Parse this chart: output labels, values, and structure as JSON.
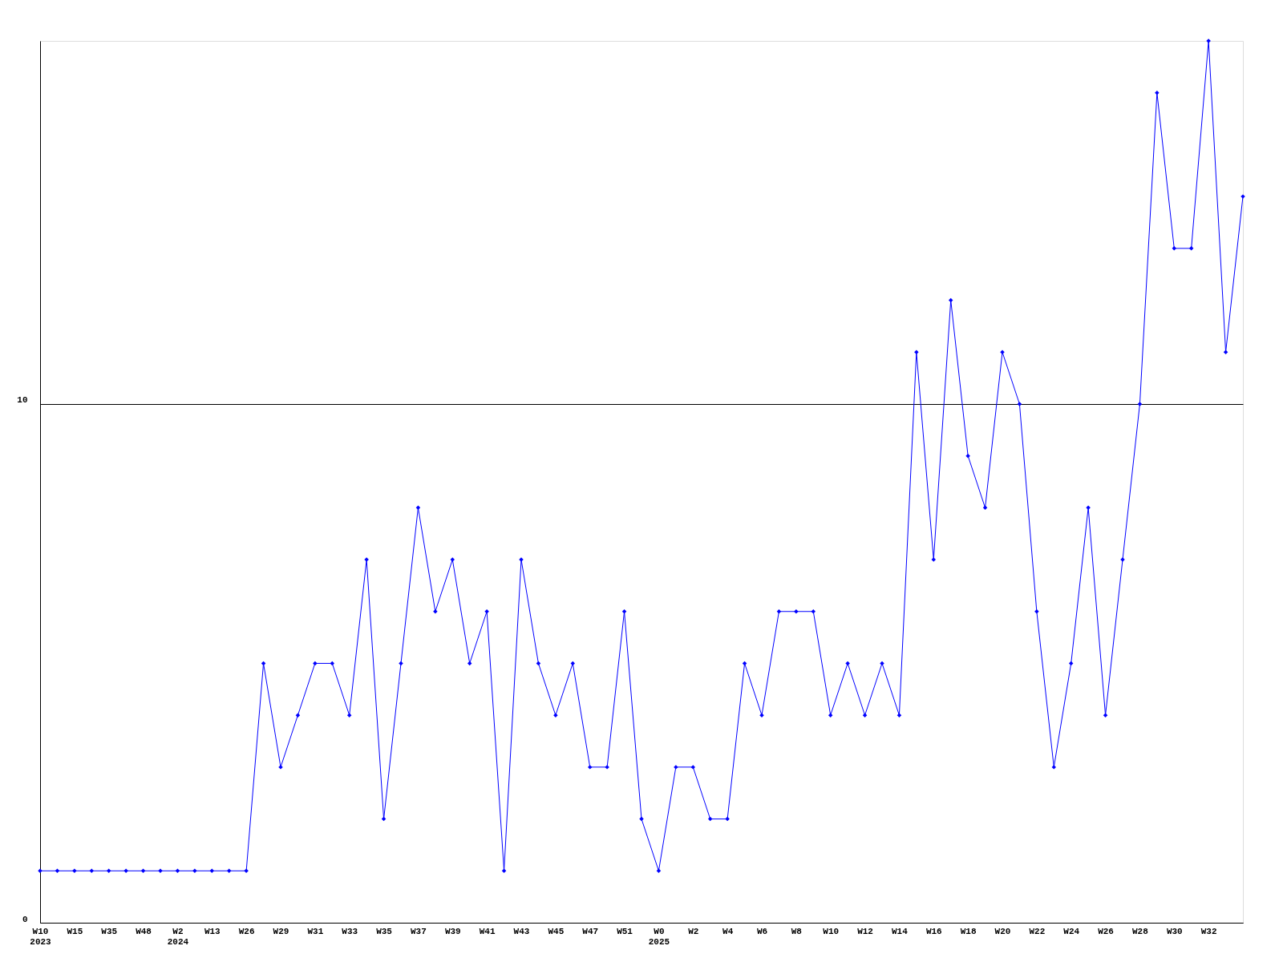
{
  "chart_data": {
    "type": "line",
    "categories": [
      "W10\n2023",
      null,
      "W15",
      null,
      "W35",
      null,
      "W48",
      null,
      "W2\n2024",
      null,
      "W13",
      null,
      "W26",
      null,
      "W29",
      null,
      "W31",
      null,
      "W33",
      null,
      "W35",
      null,
      "W37",
      null,
      "W39",
      null,
      "W41",
      null,
      "W43",
      null,
      "W45",
      null,
      "W47",
      null,
      "W51",
      null,
      "W0\n2025",
      null,
      "W2",
      null,
      "W4",
      null,
      "W6",
      null,
      "W8",
      null,
      "W10",
      null,
      "W12",
      null,
      "W14",
      null,
      "W16",
      null,
      "W18",
      null,
      "W20",
      null,
      "W22",
      null,
      "W24",
      null,
      "W26",
      null,
      "W28",
      null,
      "W30",
      null,
      "W32",
      null,
      null
    ],
    "series": [
      {
        "color": "#0000ff",
        "values": [
          1,
          1,
          1,
          1,
          1,
          1,
          1,
          1,
          1,
          1,
          1,
          1,
          1,
          5,
          3,
          4,
          5,
          5,
          4,
          7,
          2,
          5,
          8,
          6,
          7,
          5,
          6,
          1,
          7,
          5,
          4,
          5,
          3,
          3,
          6,
          2,
          1,
          3,
          3,
          2,
          2,
          5,
          4,
          6,
          6,
          6,
          4,
          5,
          4,
          5,
          4,
          11,
          7,
          12,
          9,
          8,
          11,
          10,
          6,
          3,
          5,
          8,
          4,
          7,
          10,
          16,
          13,
          13,
          17,
          11,
          14
        ]
      }
    ],
    "ylim": [
      0,
      17
    ],
    "yticks": [
      0,
      10
    ],
    "grid": "y",
    "marker": "diamond",
    "line_style": "solid"
  }
}
